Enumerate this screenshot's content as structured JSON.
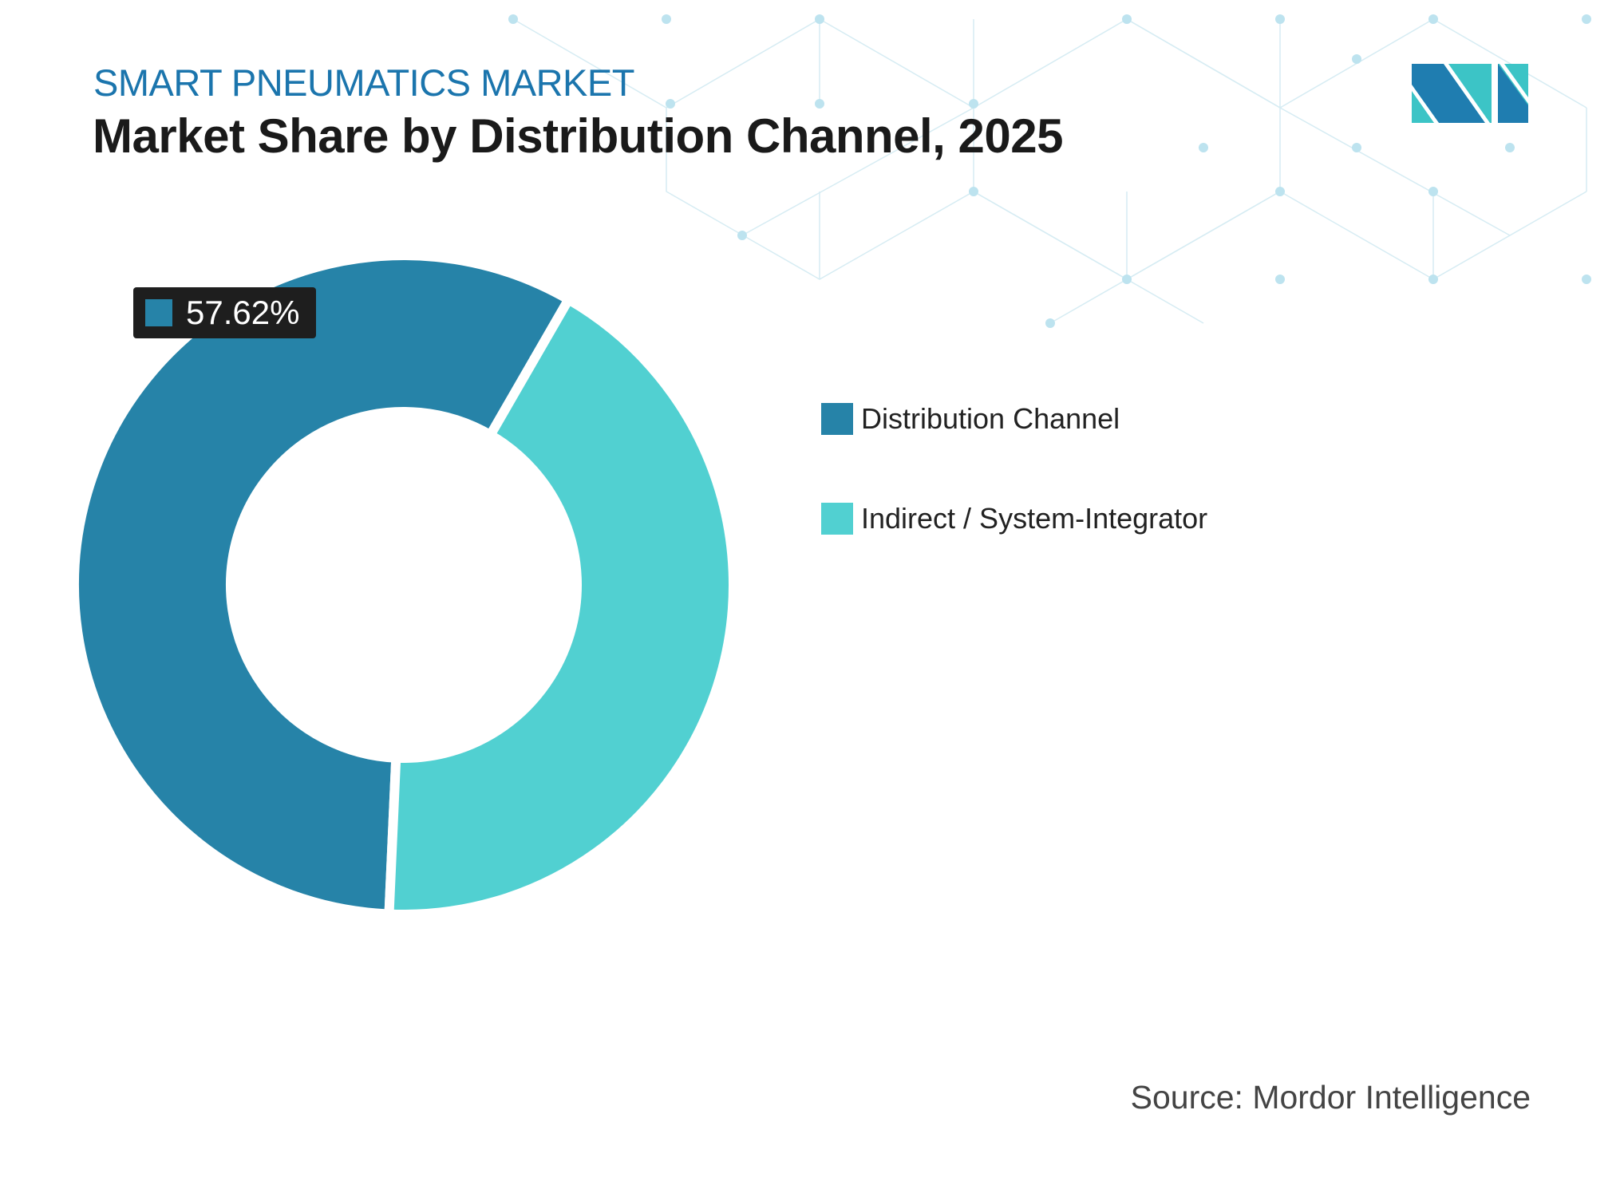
{
  "header": {
    "subtitle": "SMART PNEUMATICS MARKET",
    "title": "Market Share by Distribution Channel, 2025"
  },
  "chart_data": {
    "type": "donut",
    "title": "Market Share by Distribution Channel, 2025",
    "categories": [
      "Distribution Channel",
      "Indirect / System-Integrator"
    ],
    "values": [
      57.62,
      42.38
    ],
    "colors": [
      "#2683a8",
      "#51d0d1"
    ],
    "data_labels": [
      "57.62%"
    ],
    "legend_placement": "right"
  },
  "legend": [
    {
      "label": "Distribution Channel",
      "color": "#2683a8"
    },
    {
      "label": "Indirect / System-Integrator",
      "color": "#51d0d1"
    }
  ],
  "source": "Source: Mordor Intelligence",
  "logo": {
    "name": "mordor-intelligence-logo",
    "colors": [
      "#1f7db0",
      "#3cc4c6"
    ]
  }
}
